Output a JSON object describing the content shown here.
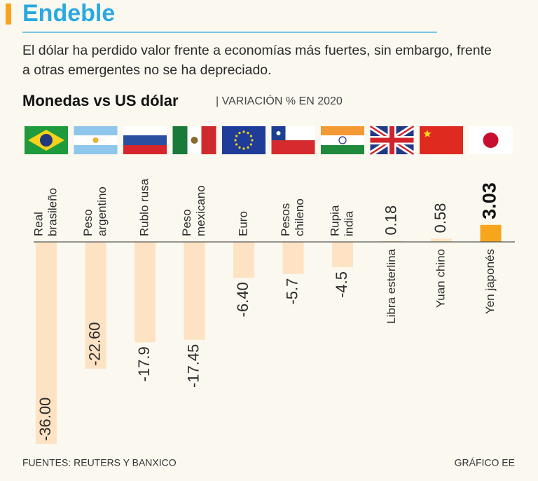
{
  "chart_data": {
    "type": "bar",
    "title": "Endeble",
    "subtitle": [
      "El dólar ha perdido valor frente a economías más fuertes, sin embargo, frente",
      "a otras emergentes no se ha depreciado."
    ],
    "chart_title": "Monedas vs US dólar",
    "chart_subtitle": "| VARIACIÓN % EN 2020",
    "categories": [
      [
        "Real",
        "brasileño"
      ],
      [
        "Peso",
        "argentino"
      ],
      [
        "Rublo rusa"
      ],
      [
        "Peso",
        "mexicano"
      ],
      [
        "Euro"
      ],
      [
        "Pesos",
        "chileno"
      ],
      [
        "Rupia",
        "india"
      ],
      [
        "Libra esterlina"
      ],
      [
        "Yuan chino"
      ],
      [
        "Yen japonés"
      ]
    ],
    "values": [
      -36.0,
      -22.6,
      -17.9,
      -17.45,
      -6.4,
      -5.7,
      -4.5,
      0.18,
      0.58,
      3.03
    ],
    "value_labels": [
      "-36.00",
      "-22.60",
      "-17.9",
      "-17.45",
      "-6.40",
      "-5.7",
      "-4.5",
      "0.18",
      "0.58",
      "3.03"
    ],
    "colors": [
      "#fde3c3",
      "#fde3c3",
      "#fde3c3",
      "#fde3c3",
      "#fde3c3",
      "#fde3c3",
      "#fde3c3",
      "#fde3c3",
      "#fde3c3",
      "#f7a51d"
    ],
    "source": "FUENTES: REUTERS Y BANXICO",
    "credit": "GRÁFICO EE"
  }
}
